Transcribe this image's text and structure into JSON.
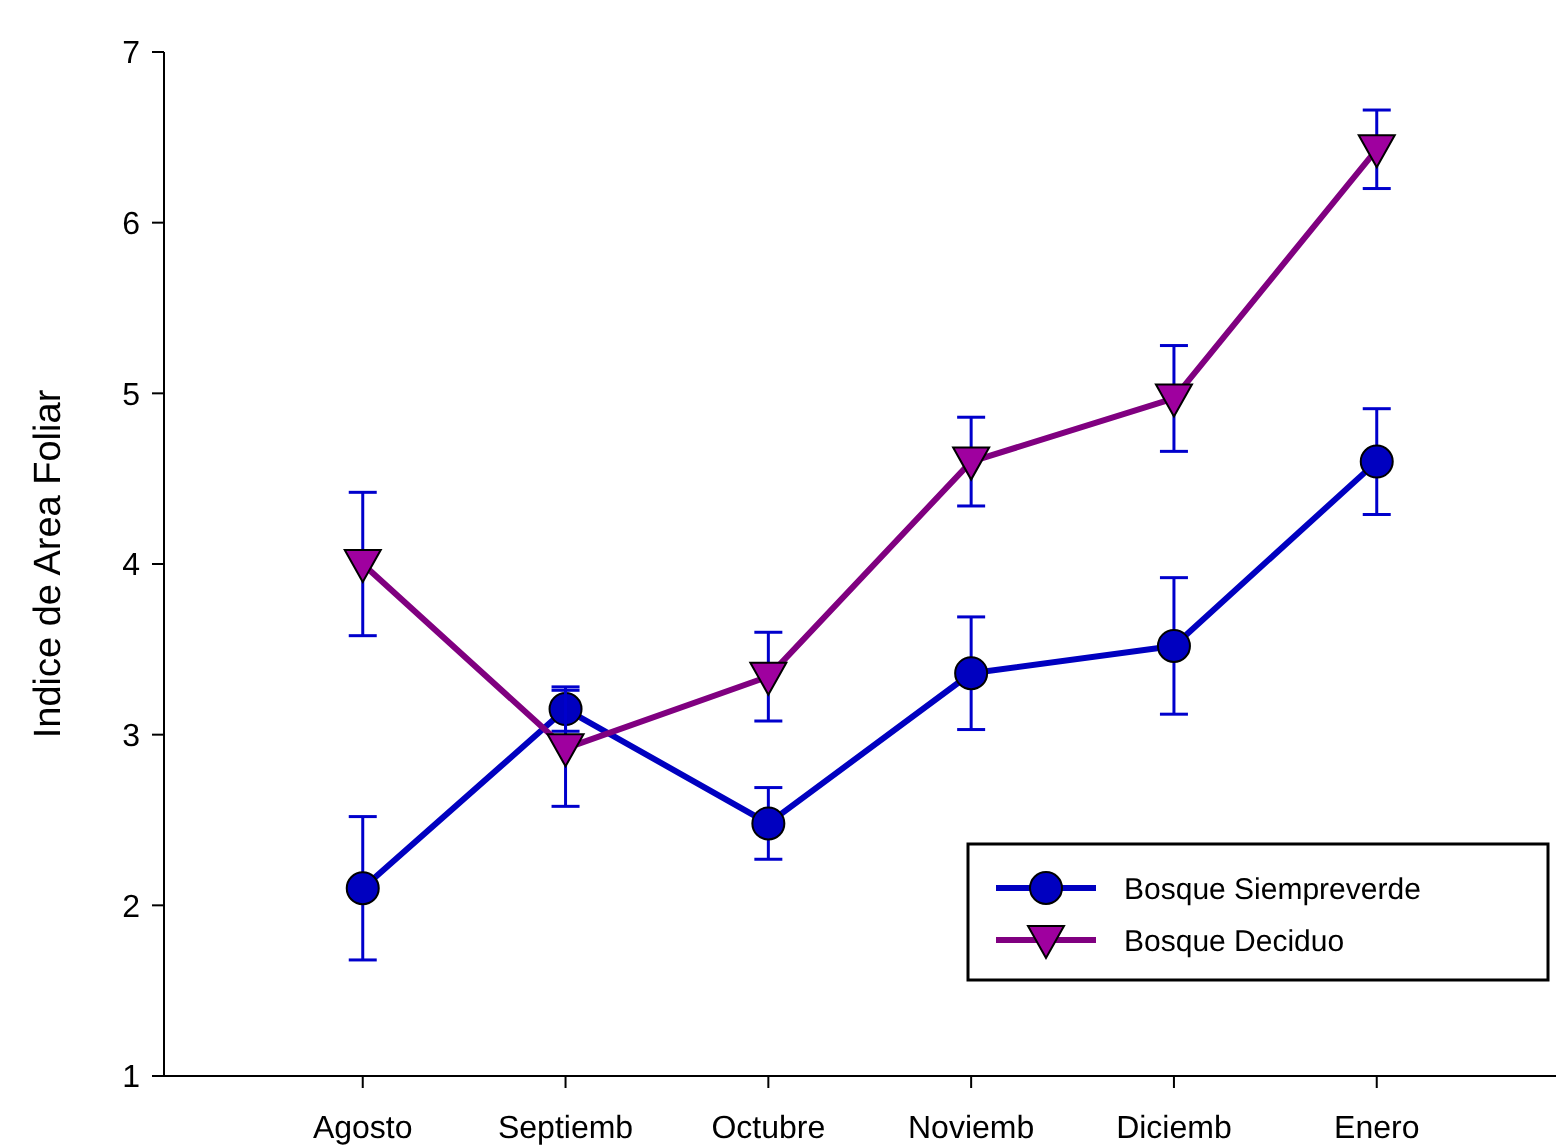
{
  "chart_data": {
    "type": "line",
    "ylabel": "Indice de Area Foliar",
    "categories": [
      "Agosto",
      "Septiemb",
      "Octubre",
      "Noviemb",
      "Diciemb",
      "Enero"
    ],
    "series": [
      {
        "name": "Bosque Siempreverde",
        "color": "#0000c0",
        "marker": "circle",
        "values": [
          2.1,
          3.15,
          2.48,
          3.36,
          3.52,
          4.6
        ],
        "errors": [
          0.42,
          0.13,
          0.21,
          0.33,
          0.4,
          0.31
        ]
      },
      {
        "name": "Bosque Deciduo",
        "color": "#800080",
        "marker": "triangle",
        "values": [
          4.0,
          2.92,
          3.34,
          4.6,
          4.97,
          6.43
        ],
        "errors": [
          0.42,
          0.34,
          0.26,
          0.26,
          0.31,
          0.23
        ]
      }
    ],
    "ylim": [
      1,
      7
    ],
    "yticks": [
      1,
      2,
      3,
      4,
      5,
      6,
      7
    ],
    "legend": "bottom right",
    "grid": false
  }
}
